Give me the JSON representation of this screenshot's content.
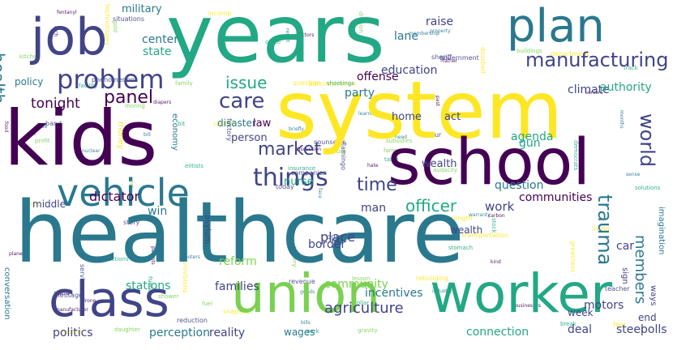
{
  "palette": {
    "yellow": "#fde725",
    "green": "#7ad151",
    "teal": "#22a884",
    "cyan": "#2a788e",
    "blue": "#414487",
    "purple": "#440154",
    "background": "#ffffff"
  },
  "words": [
    {
      "text": "healthcare",
      "color": "cyan",
      "rot": 0
    },
    {
      "text": "system",
      "color": "yellow",
      "rot": 0
    },
    {
      "text": "years",
      "color": "teal",
      "rot": 0
    },
    {
      "text": "kids",
      "color": "purple",
      "rot": 0
    },
    {
      "text": "school",
      "color": "purple",
      "rot": 0
    },
    {
      "text": "worker",
      "color": "teal",
      "rot": 0
    },
    {
      "text": "union",
      "color": "green",
      "rot": 0
    },
    {
      "text": "class",
      "color": "blue",
      "rot": 0
    },
    {
      "text": "plan",
      "color": "cyan",
      "rot": 0
    },
    {
      "text": "job",
      "color": "blue",
      "rot": 0
    },
    {
      "text": "vehicle",
      "color": "cyan",
      "rot": 0
    },
    {
      "text": "problem",
      "color": "blue",
      "rot": 0
    },
    {
      "text": "things",
      "color": "blue",
      "rot": 0
    },
    {
      "text": "manufacturing",
      "color": "blue",
      "rot": 0
    },
    {
      "text": "care",
      "color": "blue",
      "rot": 0
    },
    {
      "text": "panel",
      "color": "purple",
      "rot": 0
    },
    {
      "text": "market",
      "color": "blue",
      "rot": 0
    },
    {
      "text": "world",
      "color": "blue",
      "rot": 90
    },
    {
      "text": "trauma",
      "color": "cyan",
      "rot": 90
    },
    {
      "text": "time",
      "color": "blue",
      "rot": 0
    },
    {
      "text": "health",
      "color": "cyan",
      "rot": 90
    },
    {
      "text": "tonight",
      "color": "purple",
      "rot": 0
    },
    {
      "text": "officer",
      "color": "teal",
      "rot": 0
    },
    {
      "text": "issue",
      "color": "teal",
      "rot": 0
    },
    {
      "text": "agriculture",
      "color": "blue",
      "rot": 0
    },
    {
      "text": "members",
      "color": "cyan",
      "rot": 90
    },
    {
      "text": "education",
      "color": "blue",
      "rot": 0
    },
    {
      "text": "work",
      "color": "blue",
      "rot": 0
    },
    {
      "text": "agenda",
      "color": "teal",
      "rot": 0
    },
    {
      "text": "climate",
      "color": "blue",
      "rot": 0
    },
    {
      "text": "authority",
      "color": "teal",
      "rot": 0
    },
    {
      "text": "party",
      "color": "cyan",
      "rot": 0
    },
    {
      "text": "offense",
      "color": "purple",
      "rot": 0
    },
    {
      "text": "lane",
      "color": "cyan",
      "rot": 0
    },
    {
      "text": "raise",
      "color": "blue",
      "rot": 0
    },
    {
      "text": "military",
      "color": "cyan",
      "rot": 0
    },
    {
      "text": "center",
      "color": "cyan",
      "rot": 0
    },
    {
      "text": "state",
      "color": "teal",
      "rot": 0
    },
    {
      "text": "policy",
      "color": "cyan",
      "rot": 0
    },
    {
      "text": "disaster",
      "color": "cyan",
      "rot": 0
    },
    {
      "text": "law",
      "color": "purple",
      "rot": 0
    },
    {
      "text": "person",
      "color": "blue",
      "rot": 0
    },
    {
      "text": "nurse",
      "color": "teal",
      "rot": 0
    },
    {
      "text": "wealth",
      "color": "blue",
      "rot": 0
    },
    {
      "text": "home",
      "color": "blue",
      "rot": 0
    },
    {
      "text": "act",
      "color": "blue",
      "rot": 0
    },
    {
      "text": "gun",
      "color": "teal",
      "rot": 0
    },
    {
      "text": "man",
      "color": "blue",
      "rot": 0
    },
    {
      "text": "question",
      "color": "cyan",
      "rot": 0
    },
    {
      "text": "communities",
      "color": "purple",
      "rot": 0
    },
    {
      "text": "place",
      "color": "blue",
      "rot": 0
    },
    {
      "text": "border",
      "color": "blue",
      "rot": 0
    },
    {
      "text": "reform",
      "color": "green",
      "rot": 0
    },
    {
      "text": "car",
      "color": "blue",
      "rot": 0
    },
    {
      "text": "motors",
      "color": "blue",
      "rot": 0
    },
    {
      "text": "community",
      "color": "green",
      "rot": 0
    },
    {
      "text": "incentives",
      "color": "cyan",
      "rot": 0
    },
    {
      "text": "families",
      "color": "blue",
      "rot": 0
    },
    {
      "text": "stations",
      "color": "teal",
      "rot": 0
    },
    {
      "text": "politics",
      "color": "blue",
      "rot": 0
    },
    {
      "text": "perception",
      "color": "cyan",
      "rot": 0
    },
    {
      "text": "reality",
      "color": "blue",
      "rot": 0
    },
    {
      "text": "wages",
      "color": "cyan",
      "rot": 0
    },
    {
      "text": "deal",
      "color": "blue",
      "rot": 0
    },
    {
      "text": "steel",
      "color": "blue",
      "rot": 0
    },
    {
      "text": "polls",
      "color": "blue",
      "rot": 0
    },
    {
      "text": "connection",
      "color": "teal",
      "rot": 0
    },
    {
      "text": "end",
      "color": "blue",
      "rot": 0
    },
    {
      "text": "middle",
      "color": "blue",
      "rot": 0
    },
    {
      "text": "dictator",
      "color": "purple",
      "rot": 0
    },
    {
      "text": "win",
      "color": "cyan",
      "rot": 0
    },
    {
      "text": "conversation",
      "color": "cyan",
      "rot": 90
    },
    {
      "text": "economy",
      "color": "cyan",
      "rot": 90
    },
    {
      "text": "money",
      "color": "yellow",
      "rot": 90
    },
    {
      "text": "asylum",
      "color": "blue",
      "rot": 90
    },
    {
      "text": "imagination",
      "color": "cyan",
      "rot": 90
    },
    {
      "text": "week",
      "color": "blue",
      "rot": 0
    },
    {
      "text": "wealth",
      "color": "blue",
      "rot": 0
    },
    {
      "text": "sign",
      "color": "blue",
      "rot": 90
    },
    {
      "text": "ways",
      "color": "blue",
      "rot": 90
    }
  ],
  "small_words": [
    "face",
    "facility",
    "companies",
    "textile",
    "subsidies",
    "provisions",
    "property",
    "shootings",
    "government",
    "hate",
    "gold",
    "fear",
    "nuclear",
    "track",
    "today",
    "past",
    "daughter",
    "question",
    "learning",
    "elections",
    "factory",
    "manufacturer",
    "shower",
    "administration",
    "need",
    "stock",
    "phenomenon",
    "doctors",
    "profit",
    "strength",
    "months",
    "insurance",
    "revenue",
    "discussion",
    "family",
    "doorbell",
    "shooters",
    "break",
    "teacher",
    "carbon",
    "division",
    "course",
    "bill",
    "stomach",
    "reduction",
    "food",
    "farmers",
    "recipe",
    "goods",
    "table",
    "service",
    "seniors",
    "kitchen",
    "transportation",
    "industry",
    "friends",
    "situations",
    "fentanyl",
    "lesson",
    "department",
    "awareness",
    "elitists",
    "band",
    "diapers",
    "buildings",
    "technologies",
    "membership",
    "office",
    "counselor",
    "planes",
    "battery",
    "snapshot",
    "warranty",
    "bit",
    "message",
    "tech",
    "moring",
    "voice",
    "briefly",
    "collar",
    "flamingo",
    "drone",
    "audacity",
    "living",
    "bills",
    "democrats",
    "drugs",
    "businesses",
    "gravity",
    "rebuilding",
    "result",
    "solutions",
    "hour",
    "kind",
    "house",
    "greatness",
    "side",
    "park",
    "sheriff",
    "father",
    "cost",
    "income",
    "sense",
    "gift",
    "story",
    "parents",
    "fuel"
  ]
}
